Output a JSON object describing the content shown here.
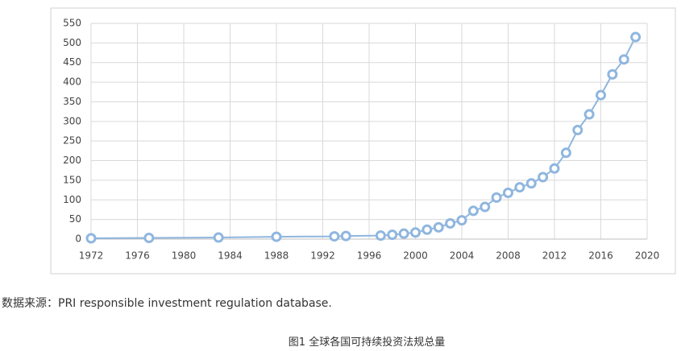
{
  "chart_data": {
    "type": "line",
    "color": "#8fb6de",
    "x": [
      1972,
      1977,
      1983,
      1988,
      1993,
      1994,
      1997,
      1998,
      1999,
      2000,
      2001,
      2002,
      2003,
      2004,
      2005,
      2006,
      2007,
      2008,
      2009,
      2010,
      2011,
      2012,
      2013,
      2014,
      2015,
      2016,
      2017,
      2018,
      2019
    ],
    "values": [
      2,
      3,
      4,
      6,
      7,
      8,
      9,
      11,
      14,
      17,
      24,
      30,
      40,
      48,
      72,
      82,
      106,
      118,
      132,
      142,
      158,
      180,
      220,
      278,
      318,
      367,
      420,
      458,
      515
    ],
    "xlim": [
      1972,
      2020
    ],
    "xticks": [
      1972,
      1976,
      1980,
      1984,
      1988,
      1992,
      1996,
      2000,
      2004,
      2008,
      2012,
      2016,
      2020
    ],
    "ylim": [
      0,
      550
    ],
    "yticks": [
      0,
      50,
      100,
      150,
      200,
      250,
      300,
      350,
      400,
      450,
      500,
      550
    ],
    "grid": true
  },
  "source": "数据来源：PRI responsible investment regulation database.",
  "caption": "图1  全球各国可持续投资法规总量"
}
